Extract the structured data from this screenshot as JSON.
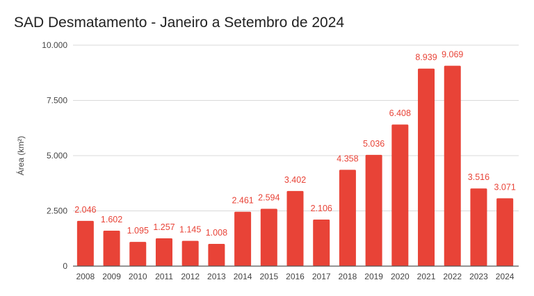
{
  "chart_data": {
    "type": "bar",
    "title": "SAD Desmatamento - Janeiro a Setembro de 2024",
    "xlabel": "",
    "ylabel": "Área (km²)",
    "ylim": [
      0,
      10000
    ],
    "yticks": [
      0,
      2500,
      5000,
      7500,
      10000
    ],
    "ytick_labels": [
      "0",
      "2.500",
      "5.000",
      "7.500",
      "10.000"
    ],
    "grid": true,
    "legend": "none",
    "bar_color": "#e84337",
    "label_color": "#e84337",
    "categories": [
      "2008",
      "2009",
      "2010",
      "2011",
      "2012",
      "2013",
      "2014",
      "2015",
      "2016",
      "2017",
      "2018",
      "2019",
      "2020",
      "2021",
      "2022",
      "2023",
      "2024"
    ],
    "values": [
      2046,
      1602,
      1095,
      1257,
      1145,
      1008,
      2461,
      2594,
      3402,
      2106,
      4358,
      5036,
      6408,
      8939,
      9069,
      3516,
      3071
    ],
    "data_labels": [
      "2.046",
      "1.602",
      "1.095",
      "1.257",
      "1.145",
      "1.008",
      "2.461",
      "2.594",
      "3.402",
      "2.106",
      "4.358",
      "5.036",
      "6.408",
      "8.939",
      "9.069",
      "3.516",
      "3.071"
    ]
  }
}
